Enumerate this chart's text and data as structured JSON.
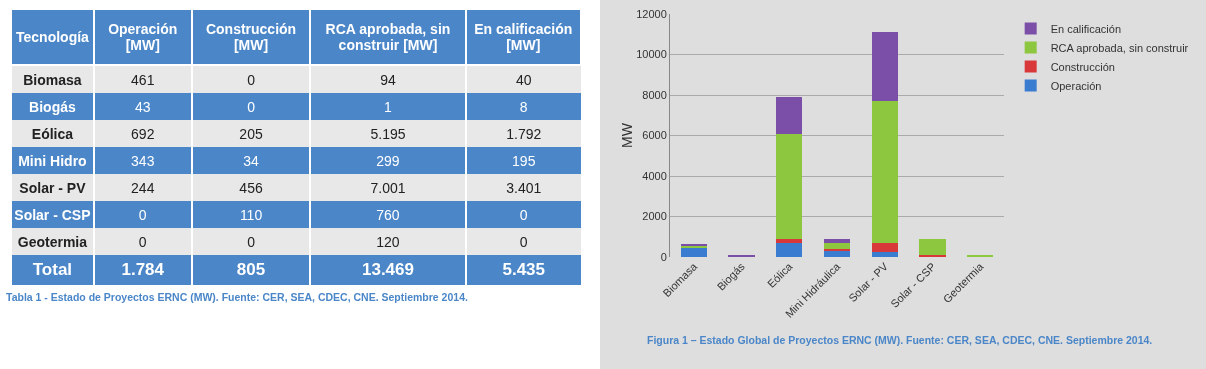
{
  "chart_data": [
    {
      "type": "other",
      "xlabel": "Tecnología",
      "categories": [
        "Biomasa",
        "Biogás",
        "Eólica",
        "Mini Hidro",
        "Solar - PV",
        "Solar - CSP",
        "Geotermia",
        "Total"
      ],
      "series": [
        {
          "name": "Operación [MW]",
          "colors": [
            "#e8e8e8",
            "#4a86c8",
            "#e8e8e8",
            "#4a86c8",
            "#e8e8e8",
            "#4a86c8",
            "#e8e8e8",
            "#4a86c8"
          ],
          "values": [
            461,
            43,
            692,
            343,
            244,
            0,
            0,
            1784
          ],
          "value_labels": [
            "461",
            "43",
            "692",
            "343",
            "244",
            "0",
            "0",
            "1.784"
          ]
        },
        {
          "name": "Construcción [MW]",
          "colors": [
            "#e8e8e8",
            "#4a86c8",
            "#e8e8e8",
            "#4a86c8",
            "#e8e8e8",
            "#4a86c8",
            "#e8e8e8",
            "#4a86c8"
          ],
          "values": [
            0,
            0,
            205,
            34,
            456,
            110,
            0,
            805
          ],
          "value_labels": [
            "0",
            "0",
            "205",
            "34",
            "456",
            "110",
            "0",
            "805"
          ]
        },
        {
          "name": "RCA aprobada, sin construir [MW]",
          "colors": [
            "#e8e8e8",
            "#4a86c8",
            "#e8e8e8",
            "#4a86c8",
            "#e8e8e8",
            "#4a86c8",
            "#e8e8e8",
            "#4a86c8"
          ],
          "values": [
            94,
            1,
            5195,
            299,
            7001,
            760,
            120,
            13469
          ],
          "value_labels": [
            "94",
            "1",
            "5.195",
            "299",
            "7.001",
            "760",
            "120",
            "13.469"
          ]
        },
        {
          "name": "En calificación [MW]",
          "colors": [
            "#e8e8e8",
            "#4a86c8",
            "#e8e8e8",
            "#4a86c8",
            "#e8e8e8",
            "#4a86c8",
            "#e8e8e8",
            "#4a86c8"
          ],
          "values": [
            40,
            8,
            1792,
            195,
            3401,
            0,
            0,
            5435
          ],
          "value_labels": [
            "40",
            "8",
            "1.792",
            "195",
            "3.401",
            "0",
            "0",
            "5.435"
          ]
        }
      ],
      "annotations": [
        "Tabla 1 - Estado de Proyectos ERNC (MW). Fuente: CER, SEA, CDEC, CNE. Septiembre 2014."
      ]
    },
    {
      "type": "bar",
      "stacked": true,
      "ylabel": "MW",
      "categories": [
        "Biomasa",
        "Biogás",
        "Eólica",
        "Mini Hidráulica",
        "Solar - PV",
        "Solar - CSP",
        "Geotermia"
      ],
      "series": [
        {
          "name": "Operación",
          "color": "#3a7dd0",
          "values": [
            461,
            43,
            692,
            343,
            244,
            0,
            0
          ]
        },
        {
          "name": "Construcción",
          "color": "#d9383a",
          "values": [
            0,
            0,
            205,
            34,
            456,
            110,
            0
          ]
        },
        {
          "name": "RCA aprobada, sin construir",
          "color": "#8dc63f",
          "values": [
            94,
            1,
            5195,
            299,
            7001,
            760,
            120
          ]
        },
        {
          "name": "En calificación",
          "color": "#7b4fa8",
          "values": [
            40,
            8,
            1792,
            195,
            3401,
            0,
            0
          ]
        }
      ],
      "ylim": [
        0,
        12000
      ],
      "yticks": [
        0,
        2000,
        4000,
        6000,
        8000,
        10000,
        12000
      ],
      "grid": "y",
      "legend": "right",
      "annotations": [
        "Figura 1 – Estado Global de Proyectos ERNC (MW). Fuente: CER, SEA, CDEC, CNE. Septiembre 2014."
      ]
    }
  ]
}
